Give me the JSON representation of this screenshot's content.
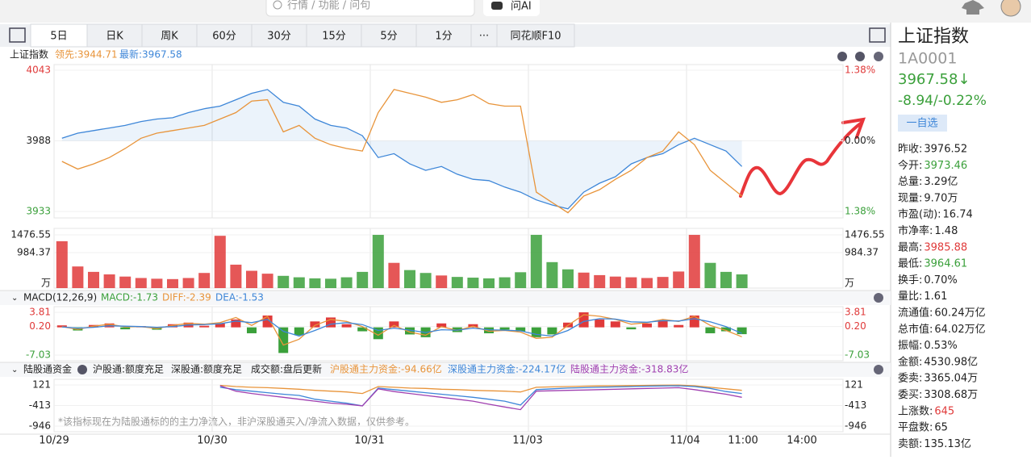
{
  "topbar": {
    "search_placeholder": "行情 / 功能 / 问句",
    "ai_button": "问AI"
  },
  "toolbar": {
    "tabs": [
      "5日",
      "日K",
      "周K",
      "60分",
      "30分",
      "15分",
      "5分",
      "1分",
      "···",
      "同花顺F10"
    ]
  },
  "price_panel": {
    "title": "上证指数",
    "lead": "领先:3944.71",
    "latest": "最新:3967.58",
    "ylim": [
      3933,
      4043
    ],
    "left_ticks": [
      {
        "value": 4043,
        "label": "4043"
      },
      {
        "value": 3988,
        "label": "3988"
      },
      {
        "value": 3933,
        "label": "3933"
      }
    ],
    "right_ticks": [
      "1.38%",
      "0.00%",
      "1.38%"
    ],
    "latest_values": [
      3990,
      3994,
      3996,
      3998,
      4000,
      4003,
      4005,
      4006,
      4010,
      4013,
      4015,
      4020,
      4025,
      4028,
      4018,
      4015,
      4005,
      4000,
      3998,
      3992,
      3975,
      3978,
      3970,
      3965,
      3968,
      3962,
      3958,
      3957,
      3952,
      3948,
      3942,
      3938,
      3935,
      3948,
      3955,
      3960,
      3970,
      3975,
      3978,
      3985,
      3990,
      3985,
      3980,
      3968
    ],
    "lead_values": [
      3972,
      3966,
      3970,
      3975,
      3982,
      3990,
      3994,
      3996,
      3998,
      4000,
      4005,
      4010,
      4019,
      4020,
      3995,
      4000,
      3990,
      3985,
      3982,
      3980,
      4010,
      4028,
      4025,
      4022,
      4018,
      4020,
      4024,
      4017,
      4015,
      4015,
      3948,
      3940,
      3932,
      3945,
      3950,
      3958,
      3965,
      3975,
      3980,
      3995,
      3985,
      3965,
      3955,
      3945
    ]
  },
  "volume_panel": {
    "ylim": [
      0,
      1476.55
    ],
    "ticks": [
      {
        "value": 1476.55,
        "label": "1476.55"
      },
      {
        "value": 984.37,
        "label": "984.37"
      }
    ],
    "unit": "万",
    "values": [
      1300,
      600,
      450,
      380,
      320,
      280,
      260,
      250,
      280,
      420,
      1450,
      650,
      480,
      400,
      340,
      300,
      270,
      260,
      300,
      450,
      1476,
      700,
      500,
      420,
      350,
      310,
      290,
      270,
      300,
      440,
      1476,
      720,
      520,
      430,
      360,
      320,
      300,
      280,
      310,
      460,
      1476,
      700,
      450,
      380
    ]
  },
  "macd_panel": {
    "title": "MACD(12,26,9)",
    "macd": "MACD:-1.73",
    "diff": "DIFF:-2.39",
    "dea": "DEA:-1.53",
    "ylim": [
      -7.03,
      3.81
    ],
    "ticks": [
      {
        "value": 3.81,
        "label": "3.81"
      },
      {
        "value": 0.2,
        "label": "0.20"
      },
      {
        "value": -7.03,
        "label": "-7.03"
      }
    ],
    "hist": [
      0.5,
      -0.8,
      0.6,
      1.0,
      -0.5,
      0.3,
      -0.6,
      0.8,
      1.2,
      0.4,
      1.0,
      2.0,
      -1.5,
      3.0,
      -6.5,
      -2.0,
      1.5,
      2.5,
      0.8,
      -1.0,
      -3.0,
      1.5,
      -1.8,
      -2.5,
      1.0,
      -1.2,
      0.8,
      -1.5,
      -0.6,
      -1.0,
      -2.5,
      -1.8,
      1.2,
      3.8,
      2.0,
      1.5,
      -0.5,
      1.0,
      1.8,
      0.6,
      3.0,
      -1.5,
      -1.0,
      -1.73
    ],
    "diff_values": [
      0.2,
      -0.5,
      0.3,
      0.8,
      0.1,
      0.2,
      -0.3,
      0.5,
      1.0,
      0.8,
      1.2,
      2.5,
      0.5,
      2.8,
      -4.5,
      -3.0,
      0.5,
      2.0,
      1.5,
      0.2,
      -2.0,
      0.5,
      -1.2,
      -2.0,
      0.2,
      -0.8,
      0.3,
      -1.0,
      -0.8,
      -1.2,
      -2.8,
      -2.5,
      0.5,
      3.2,
      2.8,
      2.0,
      0.8,
      1.2,
      2.0,
      1.5,
      2.8,
      0.5,
      -0.8,
      -2.39
    ],
    "dea_values": [
      0.1,
      -0.2,
      0.0,
      0.4,
      0.3,
      0.2,
      0.0,
      0.2,
      0.6,
      0.7,
      0.9,
      1.6,
      1.2,
      2.0,
      -1.0,
      -2.2,
      -0.8,
      0.8,
      1.2,
      0.7,
      -0.8,
      -0.2,
      -0.7,
      -1.3,
      -0.6,
      -0.7,
      -0.2,
      -0.6,
      -0.7,
      -0.9,
      -1.8,
      -2.2,
      -0.8,
      1.5,
      2.2,
      2.1,
      1.4,
      1.3,
      1.7,
      1.6,
      2.2,
      1.4,
      0.2,
      -1.53
    ]
  },
  "flow_panel": {
    "title": "陆股通资金",
    "sh_status": "沪股通:额度充足",
    "sz_status": "深股通:额度充足",
    "turnover": "成交额:盘后更新",
    "sh_main": "沪股通主力资金:-94.66亿",
    "sz_main": "深股通主力资金:-224.17亿",
    "all_main": "陆股通主力资金:-318.83亿",
    "note": "*该指标现在为陆股通标的的主力净流入，非沪深股通买入/净流入数据，仅供参考。",
    "ylim": [
      -946,
      121
    ],
    "ticks": [
      {
        "value": 121,
        "label": "121"
      },
      {
        "value": -413,
        "label": "-413"
      },
      {
        "value": -946,
        "label": "-946"
      }
    ],
    "sh_values": [
      null,
      null,
      null,
      null,
      null,
      null,
      null,
      null,
      null,
      null,
      110,
      80,
      60,
      50,
      30,
      10,
      -20,
      -40,
      -60,
      -100,
      80,
      60,
      40,
      30,
      10,
      0,
      -20,
      -30,
      -40,
      -60,
      60,
      70,
      80,
      90,
      95,
      100,
      105,
      110,
      115,
      118,
      100,
      60,
      20,
      -20
    ],
    "sz_values": [
      null,
      null,
      null,
      null,
      null,
      null,
      null,
      null,
      null,
      null,
      60,
      0,
      -40,
      -80,
      -120,
      -150,
      -250,
      -300,
      -350,
      -420,
      40,
      0,
      -40,
      -80,
      -120,
      -160,
      -200,
      -250,
      -300,
      -400,
      0,
      20,
      40,
      50,
      60,
      70,
      80,
      90,
      95,
      100,
      80,
      30,
      -50,
      -100
    ],
    "all_values": [
      null,
      null,
      null,
      null,
      null,
      null,
      null,
      null,
      null,
      null,
      100,
      -40,
      -100,
      -150,
      -200,
      -250,
      -300,
      -350,
      -380,
      -420,
      20,
      -50,
      -100,
      -150,
      -200,
      -250,
      -300,
      -380,
      -450,
      -520,
      -40,
      -30,
      -20,
      -10,
      0,
      10,
      20,
      30,
      40,
      50,
      0,
      -60,
      -120,
      -200
    ]
  },
  "x_axis": [
    "10/29",
    "10/30",
    "10/31",
    "11/03",
    "11/04",
    "11:00",
    "14:00"
  ],
  "quote": {
    "name": "上证指数",
    "code": "1A0001",
    "price": "3967.58↓",
    "change": "-8.94/-0.22%",
    "watch": "一自选",
    "rows": [
      [
        "昨收:",
        "3976.52"
      ],
      [
        "今开:",
        "3973.46"
      ],
      [
        "总量:",
        "3.29亿"
      ],
      [
        "现量:",
        "9.70万"
      ],
      [
        "市盈(动):",
        "16.74"
      ],
      [
        "市净率:",
        "1.48"
      ],
      [
        "最高:",
        "3985.88"
      ],
      [
        "最低:",
        "3964.61"
      ],
      [
        "换手:",
        "0.70%"
      ],
      [
        "量比:",
        "1.61"
      ],
      [
        "流通值:",
        "60.24万亿"
      ],
      [
        "总市值:",
        "64.02万亿"
      ],
      [
        "振幅:",
        "0.53%"
      ],
      [
        "金额:",
        "4530.98亿"
      ],
      [
        "委卖:",
        "3365.04万"
      ],
      [
        "委买:",
        "3308.68万"
      ],
      [
        "上涨数:",
        "645"
      ],
      [
        "平盘数:",
        "65"
      ],
      [
        "卖额:",
        "135.13亿"
      ]
    ]
  }
}
